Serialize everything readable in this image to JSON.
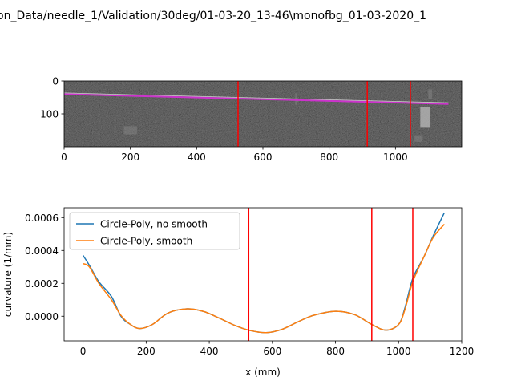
{
  "suptitle": "on_Data/needle_1/Validation/30deg/01-03-20_13-46\\monofbg_01-03-2020_1",
  "colors": {
    "series_raw": "#1f77b4",
    "series_smooth": "#ff7f0e",
    "marker_line": "#ff0000",
    "needle_line": "#cc33cc"
  },
  "chart_data": [
    {
      "type": "image",
      "title": "",
      "xlim": [
        0,
        1200
      ],
      "ylim": [
        200,
        0
      ],
      "xticks": [
        0,
        200,
        400,
        600,
        800,
        1000
      ],
      "xtick_labels": [
        "0",
        "200",
        "400",
        "600",
        "800",
        "1000"
      ],
      "yticks": [
        0,
        100
      ],
      "ytick_labels": [
        "0",
        "100"
      ],
      "needle_line": {
        "x": [
          0,
          1160
        ],
        "y": [
          40,
          70
        ]
      },
      "vlines": [
        525,
        915,
        1045
      ]
    },
    {
      "type": "line",
      "xlabel": "x (mm)",
      "ylabel": "curvature (1/mm)",
      "xlim": [
        -60,
        1200
      ],
      "ylim": [
        -0.00015,
        0.00066
      ],
      "xticks": [
        0,
        200,
        400,
        600,
        800,
        1000,
        1200
      ],
      "xtick_labels": [
        "0",
        "200",
        "400",
        "600",
        "800",
        "1000",
        "1200"
      ],
      "yticks": [
        0,
        0.0002,
        0.0004,
        0.0006
      ],
      "ytick_labels": [
        "0.0000",
        "0.0002",
        "0.0004",
        "0.0006"
      ],
      "vlines": [
        525,
        915,
        1045
      ],
      "legend": {
        "location": "upper-left"
      },
      "series": [
        {
          "name": "Circle-Poly, no smooth",
          "color_key": "series_raw",
          "x": [
            0,
            20,
            50,
            90,
            120,
            150,
            180,
            220,
            270,
            330,
            380,
            430,
            480,
            525,
            580,
            630,
            680,
            730,
            800,
            860,
            915,
            960,
            1000,
            1020,
            1045,
            1080,
            1110,
            1145
          ],
          "y": [
            0.00037,
            0.00031,
            0.00021,
            0.00012,
            0.0,
            -5e-05,
            -7.5e-05,
            -5e-05,
            2e-05,
            4.5e-05,
            3e-05,
            -1e-05,
            -5.5e-05,
            -8.5e-05,
            -0.0001,
            -8e-05,
            -3.5e-05,
            5e-06,
            3e-05,
            1e-05,
            -5e-05,
            -8.5e-05,
            -5e-05,
            5e-05,
            0.00023,
            0.00036,
            0.00049,
            0.00063
          ]
        },
        {
          "name": "Circle-Poly, smooth",
          "color_key": "series_smooth",
          "x": [
            0,
            20,
            50,
            90,
            120,
            150,
            180,
            220,
            270,
            330,
            380,
            430,
            480,
            525,
            580,
            630,
            680,
            730,
            800,
            860,
            915,
            960,
            1000,
            1020,
            1045,
            1080,
            1110,
            1145
          ],
          "y": [
            0.00032,
            0.0003,
            0.0002,
            0.0001,
            5e-06,
            -5e-05,
            -7.5e-05,
            -5e-05,
            2e-05,
            4.5e-05,
            3e-05,
            -1e-05,
            -5.5e-05,
            -8.5e-05,
            -0.0001,
            -8e-05,
            -3.5e-05,
            5e-06,
            3e-05,
            1e-05,
            -5e-05,
            -8.5e-05,
            -5e-05,
            4e-05,
            0.00021,
            0.00036,
            0.00048,
            0.00056
          ]
        }
      ]
    }
  ]
}
